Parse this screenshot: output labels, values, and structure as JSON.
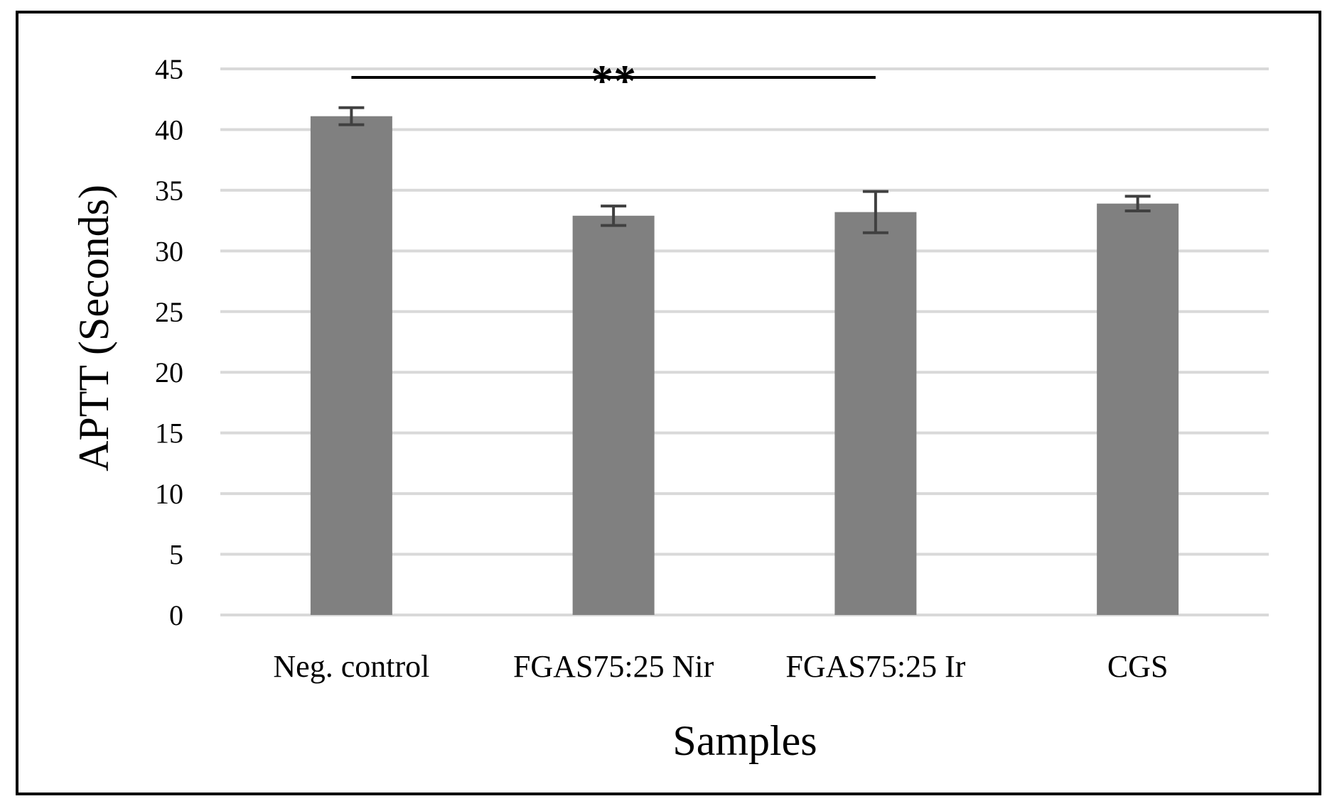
{
  "chart_data": {
    "type": "bar",
    "categories": [
      "Neg. control",
      "FGAS75:25 Nir",
      "FGAS75:25 Ir",
      "CGS"
    ],
    "values": [
      41.1,
      32.9,
      33.2,
      33.9
    ],
    "errors": [
      0.7,
      0.8,
      1.7,
      0.6
    ],
    "xlabel": "Samples",
    "ylabel": "APTT (Seconds)",
    "ylim": [
      0,
      45
    ],
    "yticks": [
      0,
      5,
      10,
      15,
      20,
      25,
      30,
      35,
      40,
      45
    ],
    "grid": true,
    "bar_color": "#808080",
    "error_color": "#404040",
    "grid_color": "#d9d9d9",
    "significance": {
      "label": "**",
      "from_category": 0,
      "to_category": 2,
      "y": 44.3
    }
  }
}
